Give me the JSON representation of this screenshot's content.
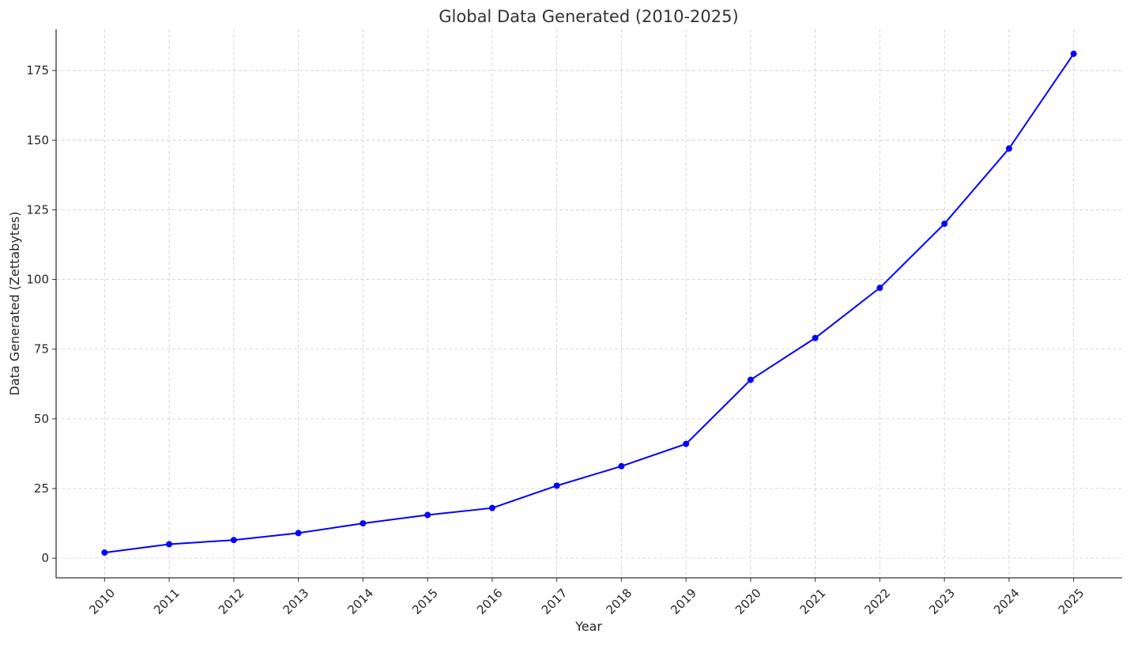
{
  "chart_data": {
    "type": "line",
    "title": "Global Data Generated (2010-2025)",
    "xlabel": "Year",
    "ylabel": "Data Generated (Zettabytes)",
    "x": [
      2010,
      2011,
      2012,
      2013,
      2014,
      2015,
      2016,
      2017,
      2018,
      2019,
      2020,
      2021,
      2022,
      2023,
      2024,
      2025
    ],
    "series": [
      {
        "name": "Global Data Generated",
        "color": "#0000ff",
        "values": [
          2,
          5,
          6.5,
          9,
          12.5,
          15.5,
          18,
          26,
          33,
          41,
          64,
          79,
          97,
          120,
          147,
          181
        ]
      }
    ],
    "xticks": [
      "2010",
      "2011",
      "2012",
      "2013",
      "2014",
      "2015",
      "2016",
      "2017",
      "2018",
      "2019",
      "2020",
      "2021",
      "2022",
      "2023",
      "2024",
      "2025"
    ],
    "yticks": [
      0,
      25,
      50,
      75,
      100,
      125,
      150,
      175
    ],
    "xlim": [
      2009.25,
      2025.75
    ],
    "ylim": [
      -7.05,
      189.8
    ],
    "grid": true,
    "marker": "circle"
  }
}
